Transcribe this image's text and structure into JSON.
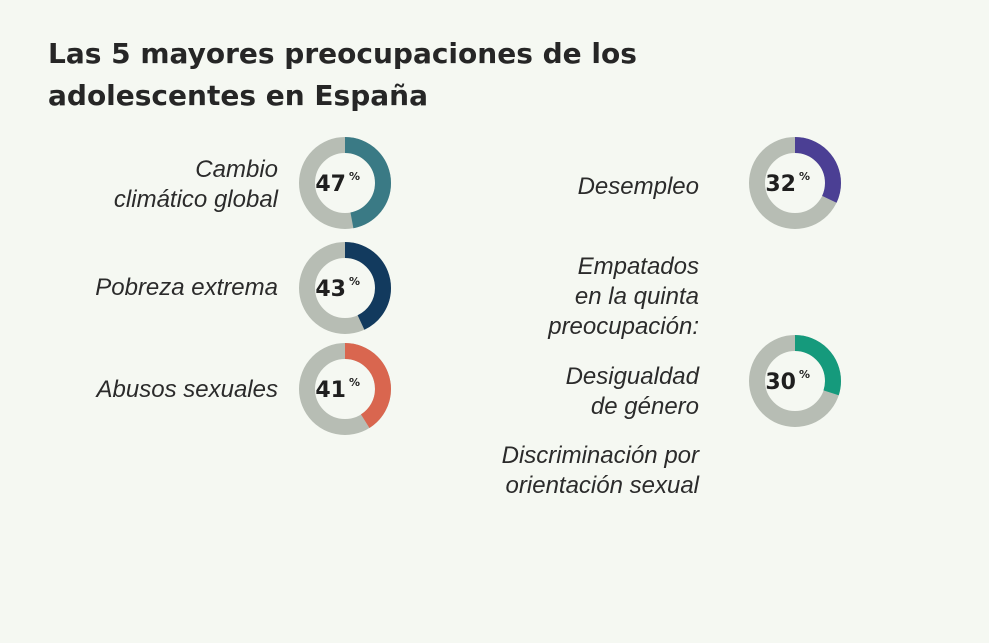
{
  "title_lines": [
    "Las 5 mayores preocupaciones de los",
    "adolescentes en España"
  ],
  "percent_sign": "%",
  "track_color": "#b7bdb4",
  "chart_data": {
    "type": "donut",
    "title": "Las 5 mayores preocupaciones de los adolescentes en España",
    "items": [
      {
        "label_lines": [
          "Cambio",
          "climático global"
        ],
        "value": 47,
        "color": "#3a7a85"
      },
      {
        "label_lines": [
          "Pobreza extrema"
        ],
        "value": 43,
        "color": "#123a5e"
      },
      {
        "label_lines": [
          "Abusos sexuales"
        ],
        "value": 41,
        "color": "#d9664f"
      },
      {
        "label_lines": [
          "Desempleo"
        ],
        "value": 32,
        "color": "#4b3f94"
      },
      {
        "label_lines": [
          "Desigualdad",
          "de género"
        ],
        "value": 30,
        "color": "#159a7c"
      }
    ],
    "note_lines": [
      "Empatados",
      "en la quinta",
      "preocupación:"
    ],
    "tied_label_lines": [
      "Discriminación por",
      "orientación sexual"
    ]
  }
}
